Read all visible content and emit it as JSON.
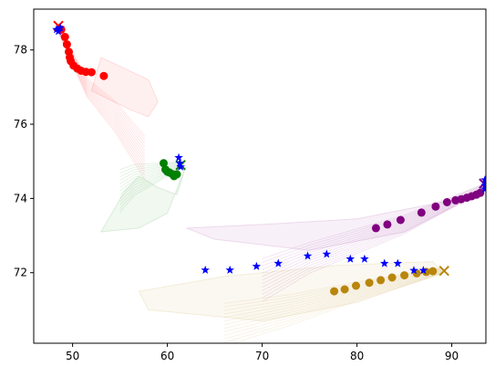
{
  "chart_data": {
    "type": "scatter",
    "title": "",
    "xlabel": "",
    "ylabel": "",
    "xlim": [
      45.9,
      93.6
    ],
    "ylim": [
      70.1,
      79.1
    ],
    "x_ticks": [
      50,
      60,
      70,
      80,
      90
    ],
    "y_ticks": [
      72,
      74,
      76,
      78
    ],
    "x_tick_labels": [
      "50",
      "60",
      "70",
      "80",
      "90"
    ],
    "y_tick_labels": [
      "72",
      "74",
      "76",
      "78"
    ],
    "grid": false,
    "series": [
      {
        "color": "#ff0000",
        "marker": "circle",
        "start_marker": "x",
        "start": [
          48.5,
          78.65
        ],
        "points": [
          [
            48.8,
            78.55
          ],
          [
            49.2,
            78.35
          ],
          [
            49.4,
            78.15
          ],
          [
            49.6,
            77.95
          ],
          [
            49.7,
            77.8
          ],
          [
            49.8,
            77.7
          ],
          [
            50.1,
            77.58
          ],
          [
            50.5,
            77.5
          ],
          [
            50.9,
            77.44
          ],
          [
            51.4,
            77.41
          ],
          [
            52.0,
            77.4
          ],
          [
            53.3,
            77.3
          ]
        ],
        "spread": [
          [
            48.6,
            78.5
          ],
          [
            51.5,
            77.0
          ],
          [
            54.5,
            76.2
          ],
          [
            57.6,
            75.1
          ]
        ],
        "envelope": [
          [
            53,
            77.8
          ],
          [
            58,
            77.2
          ],
          [
            59,
            76.6
          ],
          [
            58,
            76.2
          ],
          [
            56,
            76.4
          ],
          [
            52,
            76.9
          ]
        ]
      },
      {
        "color": "#008000",
        "marker": "circle",
        "start_marker": "x",
        "start": [
          61.4,
          74.9
        ],
        "points": [
          [
            59.6,
            74.95
          ],
          [
            59.8,
            74.78
          ],
          [
            60.0,
            74.72
          ],
          [
            60.2,
            74.7
          ],
          [
            60.5,
            74.66
          ],
          [
            60.7,
            74.6
          ],
          [
            61.0,
            74.65
          ]
        ],
        "spread": [
          [
            61.4,
            74.9
          ],
          [
            59.0,
            74.7
          ],
          [
            56.5,
            74.5
          ],
          [
            55.0,
            74.2
          ]
        ],
        "envelope": [
          [
            55.5,
            74.2
          ],
          [
            57,
            74.6
          ],
          [
            59,
            74.3
          ],
          [
            61,
            74.1
          ],
          [
            62,
            74.9
          ],
          [
            60,
            73.6
          ],
          [
            57,
            73.2
          ],
          [
            53,
            73.1
          ]
        ]
      },
      {
        "color": "#800080",
        "marker": "circle",
        "start_marker": "x",
        "start": [
          93.4,
          74.4
        ],
        "points": [
          [
            82.0,
            73.2
          ],
          [
            83.2,
            73.3
          ],
          [
            84.6,
            73.42
          ],
          [
            86.8,
            73.62
          ],
          [
            88.3,
            73.78
          ],
          [
            89.5,
            73.9
          ],
          [
            90.4,
            73.95
          ],
          [
            91.0,
            73.98
          ],
          [
            91.6,
            74.02
          ],
          [
            92.1,
            74.06
          ],
          [
            92.6,
            74.1
          ],
          [
            93.0,
            74.15
          ]
        ],
        "spread": [
          [
            93.4,
            74.3
          ],
          [
            85.0,
            73.3
          ],
          [
            75.0,
            72.4
          ],
          [
            70.0,
            71.8
          ]
        ],
        "envelope": [
          [
            62,
            73.2
          ],
          [
            70,
            73.3
          ],
          [
            80,
            73.45
          ],
          [
            90,
            73.95
          ],
          [
            93,
            74.15
          ],
          [
            85,
            73.1
          ],
          [
            75,
            72.6
          ],
          [
            65,
            72.9
          ]
        ]
      },
      {
        "color": "#b8860b",
        "marker": "circle",
        "start_marker": "x",
        "start": [
          89.2,
          72.05
        ],
        "points": [
          [
            77.6,
            71.5
          ],
          [
            78.7,
            71.55
          ],
          [
            79.9,
            71.65
          ],
          [
            81.3,
            71.73
          ],
          [
            82.5,
            71.8
          ],
          [
            83.7,
            71.87
          ],
          [
            85.0,
            71.93
          ],
          [
            86.3,
            71.98
          ],
          [
            87.3,
            72.02
          ],
          [
            88.0,
            72.04
          ]
        ],
        "spread": [
          [
            89.0,
            72.05
          ],
          [
            80.0,
            71.5
          ],
          [
            73.0,
            71.0
          ],
          [
            66.0,
            70.6
          ]
        ],
        "envelope": [
          [
            57,
            71.5
          ],
          [
            66,
            71.9
          ],
          [
            78,
            72.2
          ],
          [
            88,
            72.3
          ],
          [
            89,
            72.0
          ],
          [
            80,
            71.2
          ],
          [
            70,
            70.7
          ],
          [
            58,
            71.0
          ]
        ]
      },
      {
        "color": "#0000ff",
        "marker": "star",
        "points": [
          [
            64.0,
            72.07
          ],
          [
            66.6,
            72.07
          ],
          [
            69.4,
            72.17
          ],
          [
            71.7,
            72.25
          ],
          [
            74.8,
            72.45
          ],
          [
            76.8,
            72.5
          ],
          [
            79.3,
            72.37
          ],
          [
            80.8,
            72.37
          ],
          [
            82.9,
            72.25
          ],
          [
            84.3,
            72.25
          ],
          [
            86.0,
            72.06
          ],
          [
            87.0,
            72.06
          ],
          [
            48.3,
            78.55
          ],
          [
            48.5,
            78.5
          ],
          [
            48.7,
            78.6
          ],
          [
            61.2,
            75.1
          ],
          [
            61.3,
            74.95
          ],
          [
            61.4,
            74.85
          ],
          [
            93.5,
            74.5
          ],
          [
            93.5,
            74.35
          ],
          [
            93.5,
            74.25
          ]
        ]
      }
    ]
  }
}
